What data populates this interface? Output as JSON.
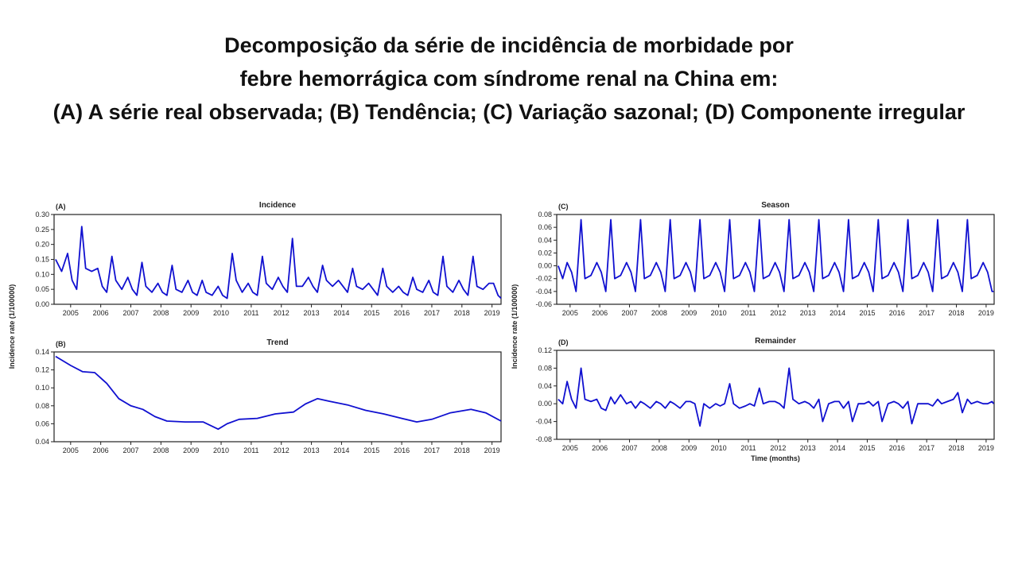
{
  "header": {
    "title": [
      "Decomposição da série de incidência de morbidade por",
      "febre hemorrágica com síndrome renal na China em:",
      "(A) A série real observada; (B) Tendência; (C) Variação sazonal; (D) Componente irregular"
    ]
  },
  "chart_data": [
    {
      "type": "line",
      "panel_label": "(A)",
      "title": "Incidence",
      "y_label": "Incidence rate (1/100000)",
      "color": "#1010d0",
      "xlim": [
        2004.45,
        2019.3
      ],
      "xticks": [
        2005,
        2006,
        2007,
        2008,
        2009,
        2010,
        2011,
        2012,
        2013,
        2014,
        2015,
        2016,
        2017,
        2018,
        2019
      ],
      "ylim": [
        0,
        0.3
      ],
      "yticks": [
        {
          "value": 0,
          "label": "0.00"
        },
        0.05,
        {
          "value": 0.1,
          "label": "0.10"
        },
        0.15,
        {
          "value": 0.2,
          "label": "0.20"
        },
        0.25,
        {
          "value": 0.3,
          "label": "0.30"
        }
      ],
      "x": [
        2004.5,
        2004.7,
        2004.9,
        2005.05,
        2005.2,
        2005.37,
        2005.5,
        2005.7,
        2005.9,
        2006.05,
        2006.2,
        2006.37,
        2006.5,
        2006.7,
        2006.9,
        2007.05,
        2007.2,
        2007.37,
        2007.5,
        2007.7,
        2007.9,
        2008.05,
        2008.2,
        2008.37,
        2008.5,
        2008.7,
        2008.9,
        2009.05,
        2009.2,
        2009.37,
        2009.5,
        2009.7,
        2009.9,
        2010.05,
        2010.2,
        2010.37,
        2010.5,
        2010.7,
        2010.9,
        2011.05,
        2011.2,
        2011.37,
        2011.5,
        2011.7,
        2011.9,
        2012.05,
        2012.2,
        2012.37,
        2012.5,
        2012.7,
        2012.9,
        2013.05,
        2013.2,
        2013.37,
        2013.5,
        2013.7,
        2013.9,
        2014.05,
        2014.2,
        2014.37,
        2014.5,
        2014.7,
        2014.9,
        2015.05,
        2015.2,
        2015.37,
        2015.5,
        2015.7,
        2015.9,
        2016.05,
        2016.2,
        2016.37,
        2016.5,
        2016.7,
        2016.9,
        2017.05,
        2017.2,
        2017.37,
        2017.5,
        2017.7,
        2017.9,
        2018.05,
        2018.2,
        2018.37,
        2018.5,
        2018.7,
        2018.9,
        2019.05,
        2019.2,
        2019.3
      ],
      "values": [
        0.15,
        0.11,
        0.17,
        0.08,
        0.05,
        0.26,
        0.12,
        0.11,
        0.12,
        0.06,
        0.04,
        0.16,
        0.08,
        0.05,
        0.09,
        0.05,
        0.03,
        0.14,
        0.06,
        0.04,
        0.07,
        0.04,
        0.03,
        0.13,
        0.05,
        0.04,
        0.08,
        0.04,
        0.03,
        0.08,
        0.04,
        0.03,
        0.06,
        0.03,
        0.02,
        0.17,
        0.08,
        0.04,
        0.07,
        0.04,
        0.03,
        0.16,
        0.07,
        0.05,
        0.09,
        0.06,
        0.04,
        0.22,
        0.06,
        0.06,
        0.09,
        0.06,
        0.04,
        0.13,
        0.08,
        0.06,
        0.08,
        0.06,
        0.04,
        0.12,
        0.06,
        0.05,
        0.07,
        0.05,
        0.03,
        0.12,
        0.06,
        0.04,
        0.06,
        0.04,
        0.03,
        0.09,
        0.05,
        0.04,
        0.08,
        0.04,
        0.03,
        0.16,
        0.06,
        0.04,
        0.08,
        0.05,
        0.03,
        0.16,
        0.06,
        0.05,
        0.07,
        0.07,
        0.03,
        0.02
      ]
    },
    {
      "type": "line",
      "panel_label": "(B)",
      "title": "Trend",
      "color": "#1010d0",
      "xlim": [
        2004.45,
        2019.3
      ],
      "xticks": [
        2005,
        2006,
        2007,
        2008,
        2009,
        2010,
        2011,
        2012,
        2013,
        2014,
        2015,
        2016,
        2017,
        2018,
        2019
      ],
      "ylim": [
        0.04,
        0.14
      ],
      "yticks": [
        0.04,
        0.06,
        0.08,
        {
          "value": 0.1,
          "label": "0.10"
        },
        0.12,
        0.14
      ],
      "x": [
        2004.5,
        2005.0,
        2005.4,
        2005.8,
        2006.2,
        2006.6,
        2007.0,
        2007.4,
        2007.8,
        2008.2,
        2008.8,
        2009.4,
        2009.9,
        2010.2,
        2010.6,
        2011.2,
        2011.8,
        2012.4,
        2012.8,
        2013.2,
        2013.6,
        2014.2,
        2014.8,
        2015.4,
        2016.0,
        2016.5,
        2017.0,
        2017.6,
        2018.3,
        2018.8,
        2019.3
      ],
      "values": [
        0.135,
        0.125,
        0.118,
        0.117,
        0.105,
        0.088,
        0.08,
        0.076,
        0.068,
        0.063,
        0.062,
        0.062,
        0.054,
        0.06,
        0.065,
        0.066,
        0.071,
        0.073,
        0.082,
        0.088,
        0.085,
        0.081,
        0.075,
        0.071,
        0.066,
        0.062,
        0.065,
        0.072,
        0.076,
        0.072,
        0.063
      ]
    },
    {
      "type": "line",
      "panel_label": "(C)",
      "title": "Season",
      "y_label": "Incidence rate (1/100000)",
      "color": "#1010d0",
      "xlim": [
        2004.55,
        2019.27
      ],
      "xticks": [
        2005,
        2006,
        2007,
        2008,
        2009,
        2010,
        2011,
        2012,
        2013,
        2014,
        2015,
        2016,
        2017,
        2018,
        2019
      ],
      "ylim": [
        -0.06,
        0.08
      ],
      "yticks": [
        -0.06,
        -0.04,
        -0.02,
        {
          "value": 0,
          "label": "0.00"
        },
        0.02,
        0.04,
        0.06,
        0.08
      ],
      "x": [
        2004.6,
        2004.75,
        2004.9,
        2005.05,
        2005.2,
        2005.37,
        2005.5,
        2005.7,
        2005.9,
        2006.05,
        2006.2,
        2006.37,
        2006.5,
        2006.7,
        2006.9,
        2007.05,
        2007.2,
        2007.37,
        2007.5,
        2007.7,
        2007.9,
        2008.05,
        2008.2,
        2008.37,
        2008.5,
        2008.7,
        2008.9,
        2009.05,
        2009.2,
        2009.37,
        2009.5,
        2009.7,
        2009.9,
        2010.05,
        2010.2,
        2010.37,
        2010.5,
        2010.7,
        2010.9,
        2011.05,
        2011.2,
        2011.37,
        2011.5,
        2011.7,
        2011.9,
        2012.05,
        2012.2,
        2012.37,
        2012.5,
        2012.7,
        2012.9,
        2013.05,
        2013.2,
        2013.37,
        2013.5,
        2013.7,
        2013.9,
        2014.05,
        2014.2,
        2014.37,
        2014.5,
        2014.7,
        2014.9,
        2015.05,
        2015.2,
        2015.37,
        2015.5,
        2015.7,
        2015.9,
        2016.05,
        2016.2,
        2016.37,
        2016.5,
        2016.7,
        2016.9,
        2017.05,
        2017.2,
        2017.37,
        2017.5,
        2017.7,
        2017.9,
        2018.05,
        2018.2,
        2018.37,
        2018.5,
        2018.7,
        2018.9,
        2019.05,
        2019.2,
        2019.25
      ],
      "values": [
        0,
        -0.02,
        0.005,
        -0.01,
        -0.04,
        0.072,
        -0.02,
        -0.015,
        0.005,
        -0.01,
        -0.04,
        0.072,
        -0.02,
        -0.015,
        0.005,
        -0.01,
        -0.04,
        0.072,
        -0.02,
        -0.015,
        0.005,
        -0.01,
        -0.04,
        0.072,
        -0.02,
        -0.015,
        0.005,
        -0.01,
        -0.04,
        0.072,
        -0.02,
        -0.015,
        0.005,
        -0.01,
        -0.04,
        0.072,
        -0.02,
        -0.015,
        0.005,
        -0.01,
        -0.04,
        0.072,
        -0.02,
        -0.015,
        0.005,
        -0.01,
        -0.04,
        0.072,
        -0.02,
        -0.015,
        0.005,
        -0.01,
        -0.04,
        0.072,
        -0.02,
        -0.015,
        0.005,
        -0.01,
        -0.04,
        0.072,
        -0.02,
        -0.015,
        0.005,
        -0.01,
        -0.04,
        0.072,
        -0.02,
        -0.015,
        0.005,
        -0.01,
        -0.04,
        0.072,
        -0.02,
        -0.015,
        0.005,
        -0.01,
        -0.04,
        0.072,
        -0.02,
        -0.015,
        0.005,
        -0.01,
        -0.04,
        0.072,
        -0.02,
        -0.015,
        0.005,
        -0.01,
        -0.04,
        -0.04
      ]
    },
    {
      "type": "line",
      "panel_label": "(D)",
      "title": "Remainder",
      "x_label": "Time (months)",
      "color": "#1010d0",
      "xlim": [
        2004.55,
        2019.27
      ],
      "xticks": [
        2005,
        2006,
        2007,
        2008,
        2009,
        2010,
        2011,
        2012,
        2013,
        2014,
        2015,
        2016,
        2017,
        2018,
        2019
      ],
      "ylim": [
        -0.08,
        0.12
      ],
      "yticks": [
        -0.08,
        -0.04,
        {
          "value": 0,
          "label": "0.00"
        },
        0.04,
        0.08,
        0.12
      ],
      "x": [
        2004.6,
        2004.75,
        2004.9,
        2005.05,
        2005.2,
        2005.37,
        2005.5,
        2005.7,
        2005.9,
        2006.05,
        2006.2,
        2006.37,
        2006.5,
        2006.7,
        2006.9,
        2007.05,
        2007.2,
        2007.37,
        2007.5,
        2007.7,
        2007.9,
        2008.05,
        2008.2,
        2008.37,
        2008.5,
        2008.7,
        2008.9,
        2009.05,
        2009.2,
        2009.37,
        2009.5,
        2009.7,
        2009.9,
        2010.05,
        2010.2,
        2010.37,
        2010.5,
        2010.7,
        2010.9,
        2011.05,
        2011.2,
        2011.37,
        2011.5,
        2011.7,
        2011.9,
        2012.05,
        2012.2,
        2012.37,
        2012.5,
        2012.7,
        2012.9,
        2013.05,
        2013.2,
        2013.37,
        2013.5,
        2013.7,
        2013.9,
        2014.05,
        2014.2,
        2014.37,
        2014.5,
        2014.7,
        2014.9,
        2015.05,
        2015.2,
        2015.37,
        2015.5,
        2015.7,
        2015.9,
        2016.05,
        2016.2,
        2016.37,
        2016.5,
        2016.7,
        2016.9,
        2017.05,
        2017.2,
        2017.37,
        2017.5,
        2017.7,
        2017.9,
        2018.05,
        2018.2,
        2018.37,
        2018.5,
        2018.7,
        2018.9,
        2019.05,
        2019.2,
        2019.25
      ],
      "values": [
        0.01,
        0,
        0.05,
        0.01,
        -0.01,
        0.08,
        0.01,
        0.005,
        0.01,
        -0.01,
        -0.015,
        0.015,
        0,
        0.02,
        0,
        0.005,
        -0.01,
        0.005,
        0,
        -0.01,
        0.005,
        0,
        -0.01,
        0.005,
        0,
        -0.01,
        0.005,
        0.005,
        0,
        -0.05,
        0,
        -0.01,
        0,
        -0.005,
        0,
        0.045,
        0,
        -0.01,
        -0.005,
        0,
        -0.005,
        0.035,
        0,
        0.005,
        0.005,
        0,
        -0.01,
        0.08,
        0.01,
        0,
        0.005,
        0,
        -0.01,
        0.01,
        -0.04,
        0,
        0.005,
        0.005,
        -0.01,
        0.005,
        -0.04,
        0,
        0,
        0.005,
        -0.005,
        0.005,
        -0.04,
        0,
        0.005,
        0,
        -0.01,
        0.005,
        -0.045,
        0,
        0,
        0,
        -0.005,
        0.01,
        0,
        0.005,
        0.01,
        0.025,
        -0.02,
        0.01,
        0,
        0.005,
        0,
        0,
        0.005,
        0
      ]
    }
  ]
}
